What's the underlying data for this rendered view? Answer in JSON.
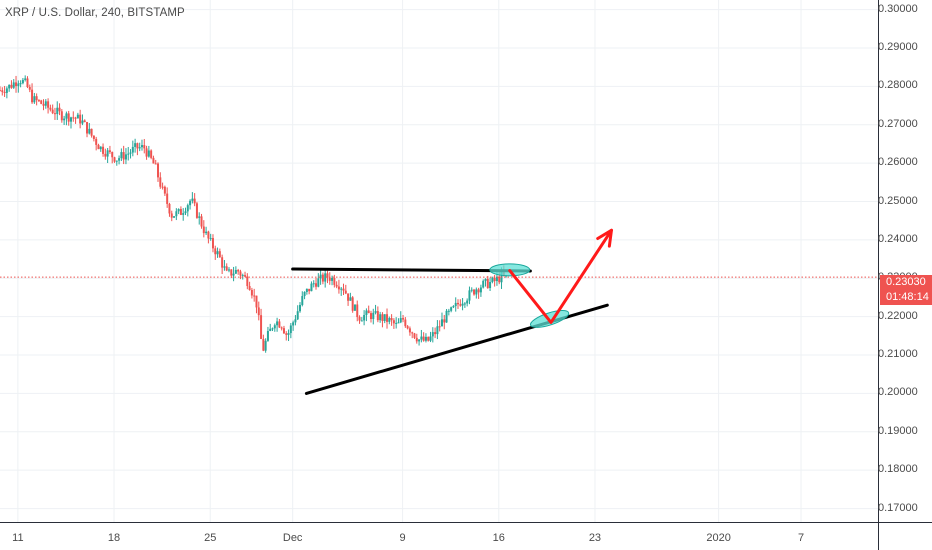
{
  "chart_title": "XRP / U.S. Dollar, 240, BITSTAMP",
  "colors": {
    "up": "#26a69a",
    "down": "#ef5350",
    "grid": "#eef1f4",
    "axis_text": "#4a4a4a",
    "price_line": "#ef5350",
    "trendline": "#000000",
    "arrow": "#ff1a1a",
    "highlight_fill": "#5ee0d6"
  },
  "price_label": {
    "value": "0.23030",
    "countdown": "01:48:14"
  },
  "chart_data": {
    "type": "candlestick",
    "title": "XRP / U.S. Dollar, 240, BITSTAMP",
    "y_axis_side": "right",
    "ylim": [
      0.1665,
      0.3025
    ],
    "y_ticks": [
      "0.30000",
      "0.29000",
      "0.28000",
      "0.27000",
      "0.26000",
      "0.25000",
      "0.24000",
      "0.23000",
      "0.22000",
      "0.21000",
      "0.20000",
      "0.19000",
      "0.18000",
      "0.17000"
    ],
    "x_ticks": [
      "11",
      "18",
      "25",
      "Dec",
      "9",
      "16",
      "23",
      "2020",
      "7"
    ],
    "x_tick_days": [
      0,
      7,
      14,
      20,
      28,
      35,
      42,
      51,
      57
    ],
    "x_range_days": [
      -1.3,
      62.6
    ],
    "grid": true,
    "last_price": 0.2303,
    "series_anchors": [
      [
        -1.3,
        0.279
      ],
      [
        -0.6,
        0.28
      ],
      [
        0.1,
        0.282
      ],
      [
        0.6,
        0.2805
      ],
      [
        1.1,
        0.2765
      ],
      [
        1.6,
        0.2758
      ],
      [
        2.4,
        0.274
      ],
      [
        3.2,
        0.2725
      ],
      [
        4.0,
        0.272
      ],
      [
        4.6,
        0.2712
      ],
      [
        5.2,
        0.268
      ],
      [
        6.0,
        0.264
      ],
      [
        6.6,
        0.2625
      ],
      [
        7.2,
        0.2612
      ],
      [
        8.0,
        0.2625
      ],
      [
        8.6,
        0.264
      ],
      [
        9.2,
        0.264
      ],
      [
        10.0,
        0.259
      ],
      [
        10.5,
        0.253
      ],
      [
        11.2,
        0.2465
      ],
      [
        11.8,
        0.247
      ],
      [
        12.6,
        0.2505
      ],
      [
        13.2,
        0.2455
      ],
      [
        13.8,
        0.2405
      ],
      [
        14.6,
        0.236
      ],
      [
        15.2,
        0.231
      ],
      [
        16.0,
        0.232
      ],
      [
        16.8,
        0.229
      ],
      [
        17.4,
        0.223
      ],
      [
        17.8,
        0.211
      ],
      [
        18.2,
        0.215
      ],
      [
        18.7,
        0.219
      ],
      [
        19.2,
        0.218
      ],
      [
        19.6,
        0.215
      ],
      [
        20.2,
        0.22
      ],
      [
        20.8,
        0.2255
      ],
      [
        21.6,
        0.229
      ],
      [
        22.6,
        0.2305
      ],
      [
        23.2,
        0.229
      ],
      [
        23.7,
        0.2275
      ],
      [
        24.2,
        0.224
      ],
      [
        24.8,
        0.22
      ],
      [
        25.6,
        0.2205
      ],
      [
        26.2,
        0.22
      ],
      [
        27.0,
        0.219
      ],
      [
        27.6,
        0.2175
      ],
      [
        28.0,
        0.2195
      ],
      [
        28.6,
        0.2165
      ],
      [
        29.2,
        0.214
      ],
      [
        29.8,
        0.2135
      ],
      [
        30.4,
        0.216
      ],
      [
        31.0,
        0.2195
      ],
      [
        31.6,
        0.2215
      ],
      [
        32.2,
        0.224
      ],
      [
        32.8,
        0.2255
      ],
      [
        33.4,
        0.2275
      ],
      [
        34.0,
        0.2285
      ],
      [
        34.6,
        0.229
      ],
      [
        35.2,
        0.2305
      ],
      [
        35.6,
        0.23
      ]
    ],
    "annotations": {
      "resistance_line": [
        [
          20.0,
          0.2324
        ],
        [
          37.3,
          0.2319
        ]
      ],
      "support_line": [
        [
          21.0,
          0.2
        ],
        [
          42.9,
          0.223
        ]
      ],
      "projection_arrow": [
        [
          35.8,
          0.232
        ],
        [
          38.8,
          0.2185
        ],
        [
          43.2,
          0.2425
        ]
      ],
      "highlight_ellipses": [
        {
          "day": 35.8,
          "price": 0.2322
        },
        {
          "day": 38.7,
          "price": 0.2194
        }
      ]
    }
  }
}
